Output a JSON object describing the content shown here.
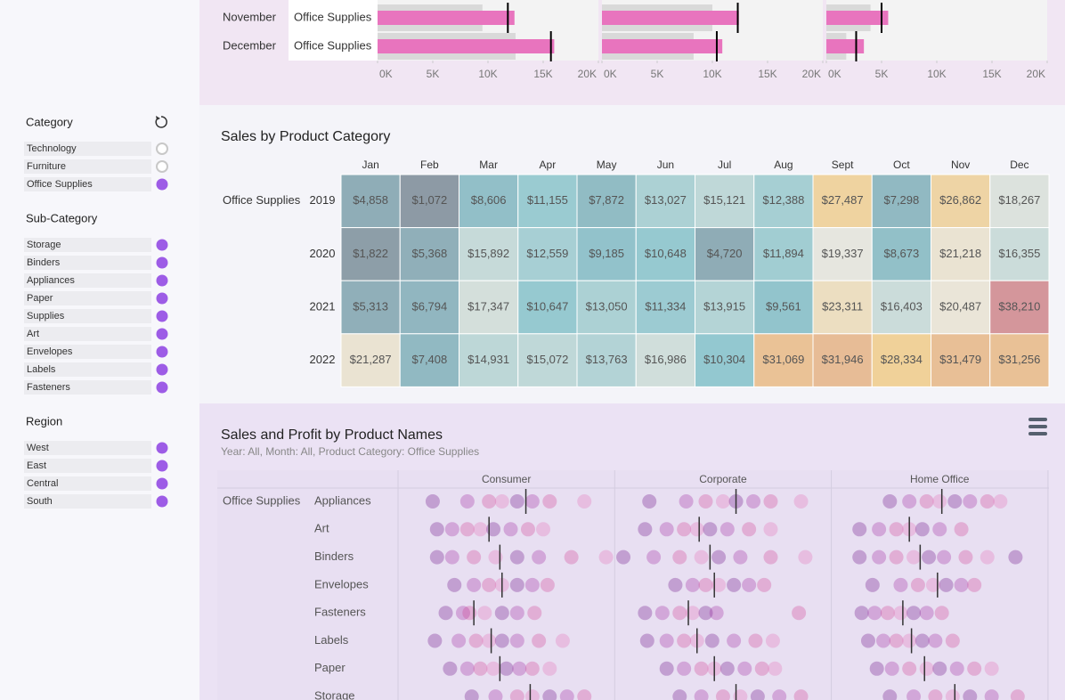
{
  "filters": [
    {
      "title": "Category",
      "items": [
        {
          "label": "Technology",
          "selected": false
        },
        {
          "label": "Furniture",
          "selected": false
        },
        {
          "label": "Office Supplies",
          "selected": true
        }
      ]
    },
    {
      "title": "Sub-Category",
      "items": [
        {
          "label": "Storage",
          "selected": true
        },
        {
          "label": "Binders",
          "selected": true
        },
        {
          "label": "Appliances",
          "selected": true
        },
        {
          "label": "Paper",
          "selected": true
        },
        {
          "label": "Supplies",
          "selected": true
        },
        {
          "label": "Art",
          "selected": true
        },
        {
          "label": "Envelopes",
          "selected": true
        },
        {
          "label": "Labels",
          "selected": true
        },
        {
          "label": "Fasteners",
          "selected": true
        }
      ]
    },
    {
      "title": "Region",
      "items": [
        {
          "label": "West",
          "selected": true
        },
        {
          "label": "East",
          "selected": true
        },
        {
          "label": "Central",
          "selected": true
        },
        {
          "label": "South",
          "selected": true
        }
      ]
    }
  ],
  "chart_data": [
    {
      "type": "bullet",
      "categories": [
        "November",
        "December"
      ],
      "row_label": "Office Supplies",
      "xlim": [
        0,
        20000
      ],
      "xticks": [
        {
          "value": 0,
          "label": "0K"
        },
        {
          "value": 5000,
          "label": "5K"
        },
        {
          "value": 10000,
          "label": "10K"
        },
        {
          "value": 15000,
          "label": "15K"
        },
        {
          "value": 20000,
          "label": "20K"
        }
      ],
      "colors": {
        "actual": "#e874be",
        "prior": "#d9d9d9",
        "target": "#000000"
      },
      "panels": [
        {
          "actual": [
            12400,
            16000
          ],
          "prior": [
            9500,
            12500
          ],
          "target": [
            11800,
            15700
          ]
        },
        {
          "actual": [
            12400,
            10900
          ],
          "prior": [
            10000,
            8300
          ],
          "target": [
            12300,
            10400
          ]
        },
        {
          "actual": [
            5600,
            3400
          ],
          "prior": [
            4000,
            1800
          ],
          "target": [
            5000,
            2700
          ]
        }
      ]
    },
    {
      "type": "heatmap",
      "title": "Sales by Product Category",
      "row_label": "Office Supplies",
      "categories": [
        "Jan",
        "Feb",
        "Mar",
        "Apr",
        "May",
        "Jun",
        "Jul",
        "Aug",
        "Sept",
        "Oct",
        "Nov",
        "Dec"
      ],
      "colors": [
        "#8d9aa5",
        "#93c8d0",
        "#e9e7df",
        "#f0cf94",
        "#d4969b"
      ],
      "series": [
        {
          "name": "2019",
          "values": [
            4858,
            1072,
            8606,
            11155,
            7872,
            13027,
            15121,
            12388,
            27487,
            7298,
            26862,
            18267
          ],
          "value_labels": [
            "$4,858",
            "$1,072",
            "$8,606",
            "$11,155",
            "$7,872",
            "$13,027",
            "$15,121",
            "$12,388",
            "$27,487",
            "$7,298",
            "$26,862",
            "$18,267"
          ]
        },
        {
          "name": "2020",
          "values": [
            1822,
            5368,
            15892,
            12559,
            9185,
            10648,
            4720,
            11894,
            19337,
            8673,
            21218,
            16355
          ],
          "value_labels": [
            "$1,822",
            "$5,368",
            "$15,892",
            "$12,559",
            "$9,185",
            "$10,648",
            "$4,720",
            "$11,894",
            "$19,337",
            "$8,673",
            "$21,218",
            "$16,355"
          ]
        },
        {
          "name": "2021",
          "values": [
            5313,
            6794,
            17347,
            10647,
            13050,
            11334,
            13915,
            9561,
            23311,
            16403,
            20487,
            38210
          ],
          "value_labels": [
            "$5,313",
            "$6,794",
            "$17,347",
            "$10,647",
            "$13,050",
            "$11,334",
            "$13,915",
            "$9,561",
            "$23,311",
            "$16,403",
            "$20,487",
            "$38,210"
          ]
        },
        {
          "name": "2022",
          "values": [
            21287,
            7408,
            14931,
            15072,
            13763,
            16986,
            10304,
            31069,
            31946,
            28334,
            31479,
            31256
          ],
          "value_labels": [
            "$21,287",
            "$7,408",
            "$14,931",
            "$15,072",
            "$13,763",
            "$16,986",
            "$10,304",
            "$31,069",
            "$31,946",
            "$28,334",
            "$31,479",
            "$31,256"
          ]
        }
      ]
    },
    {
      "type": "strip",
      "title": "Sales and Profit by Product Names",
      "subtitle": "Year: All, Month: All, Product Category: Office Supplies",
      "row_label": "Office Supplies",
      "categories": [
        "Appliances",
        "Art",
        "Binders",
        "Envelopes",
        "Fasteners",
        "Labels",
        "Paper",
        "Storage"
      ],
      "xlim": [
        0,
        100
      ],
      "colors": [
        "#6a0d83",
        "#a0279e",
        "#cf3f93",
        "#e46fb7"
      ],
      "panels": [
        {
          "name": "Consumer",
          "medians": [
            59,
            42,
            47,
            48,
            35,
            43,
            47,
            61
          ],
          "values": [
            [
              16,
              32,
              42,
              48,
              55,
              62,
              70,
              86
            ],
            [
              18,
              25,
              32,
              38,
              44,
              52,
              60,
              67
            ],
            [
              18,
              25,
              35,
              45,
              55,
              65,
              80,
              96
            ],
            [
              26,
              35,
              42,
              48,
              55,
              62,
              69
            ],
            [
              22,
              30,
              33,
              40,
              48,
              55,
              63
            ],
            [
              17,
              28,
              36,
              42,
              48,
              55,
              65,
              76
            ],
            [
              24,
              32,
              38,
              44,
              50,
              56,
              62,
              70
            ],
            [
              34,
              45,
              55,
              62,
              70,
              78,
              86
            ]
          ]
        },
        {
          "name": "Corporate",
          "medians": [
            56,
            39,
            44,
            46,
            34,
            38,
            46,
            56
          ],
          "values": [
            [
              16,
              33,
              42,
              50,
              56,
              64,
              72,
              86
            ],
            [
              14,
              24,
              32,
              38,
              44,
              52,
              62,
              72
            ],
            [
              4,
              18,
              30,
              40,
              48,
              58,
              72,
              88
            ],
            [
              28,
              36,
              42,
              48,
              55,
              62,
              69
            ],
            [
              14,
              22,
              30,
              36,
              42,
              47,
              85
            ],
            [
              15,
              24,
              32,
              38,
              45,
              55,
              65,
              73
            ],
            [
              24,
              32,
              40,
              46,
              52,
              60,
              68,
              74
            ],
            [
              30,
              40,
              50,
              58,
              66,
              76,
              86
            ]
          ]
        },
        {
          "name": "Home Office",
          "medians": [
            51,
            36,
            41,
            49,
            33,
            37,
            43,
            57
          ],
          "values": [
            [
              27,
              36,
              44,
              50,
              57,
              64,
              72,
              78
            ],
            [
              13,
              22,
              30,
              36,
              42,
              50,
              60
            ],
            [
              13,
              22,
              30,
              38,
              45,
              52,
              62,
              72,
              85
            ],
            [
              19,
              32,
              40,
              47,
              53,
              60,
              66
            ],
            [
              14,
              20,
              26,
              32,
              38,
              44,
              51
            ],
            [
              17,
              24,
              30,
              36,
              42,
              48,
              56
            ],
            [
              21,
              28,
              36,
              44,
              50,
              58,
              66,
              74
            ],
            [
              27,
              38,
              48,
              56,
              64,
              74,
              86
            ]
          ]
        }
      ]
    }
  ]
}
